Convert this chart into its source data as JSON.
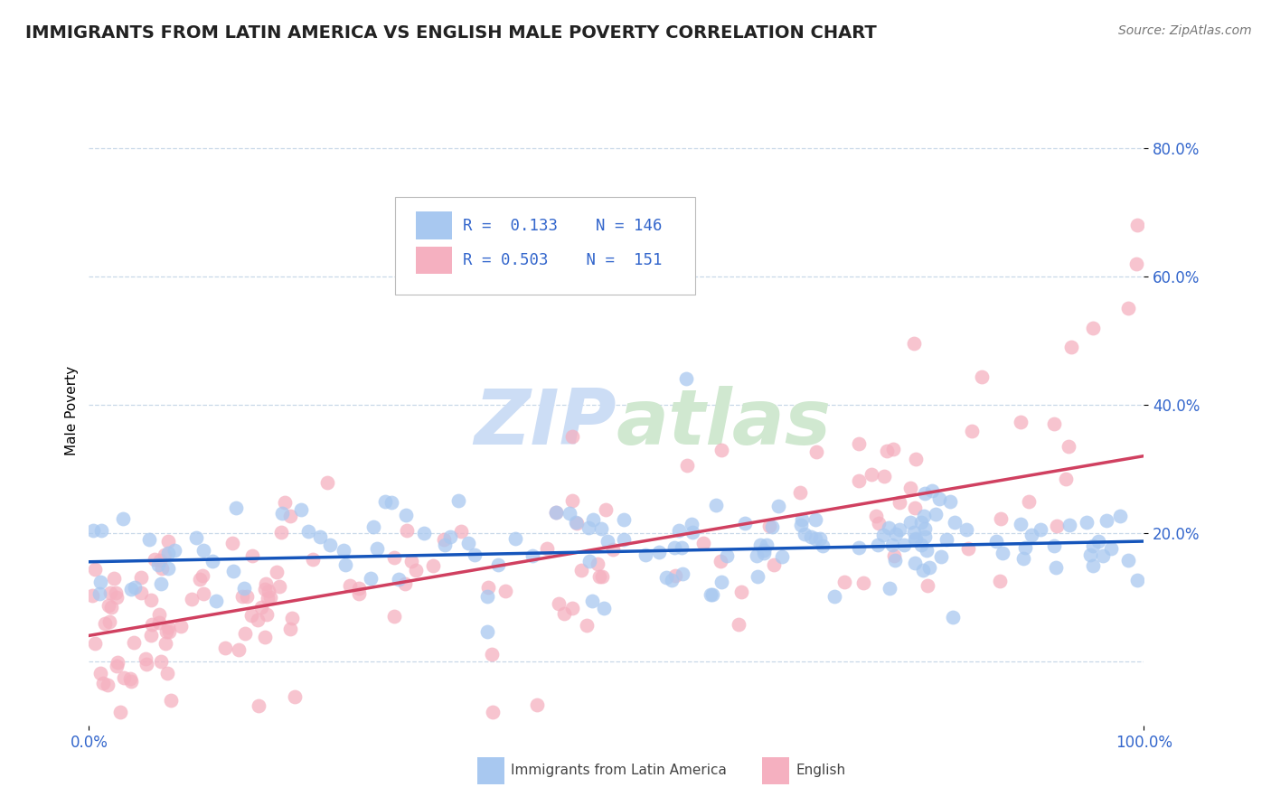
{
  "title": "IMMIGRANTS FROM LATIN AMERICA VS ENGLISH MALE POVERTY CORRELATION CHART",
  "source": "Source: ZipAtlas.com",
  "ylabel": "Male Poverty",
  "legend_label_1": "Immigrants from Latin America",
  "legend_label_2": "English",
  "r1": 0.133,
  "n1": 146,
  "r2": 0.503,
  "n2": 151,
  "color_blue": "#A8C8F0",
  "color_pink": "#F5B0C0",
  "color_blue_line": "#1555BB",
  "color_pink_line": "#D04060",
  "color_blue_text": "#3366CC",
  "background_color": "#FFFFFF",
  "grid_color": "#C8D8E8",
  "xlim": [
    0.0,
    1.0
  ],
  "ylim": [
    -0.1,
    0.88
  ],
  "title_fontsize": 14,
  "axis_label_fontsize": 11,
  "tick_fontsize": 12
}
